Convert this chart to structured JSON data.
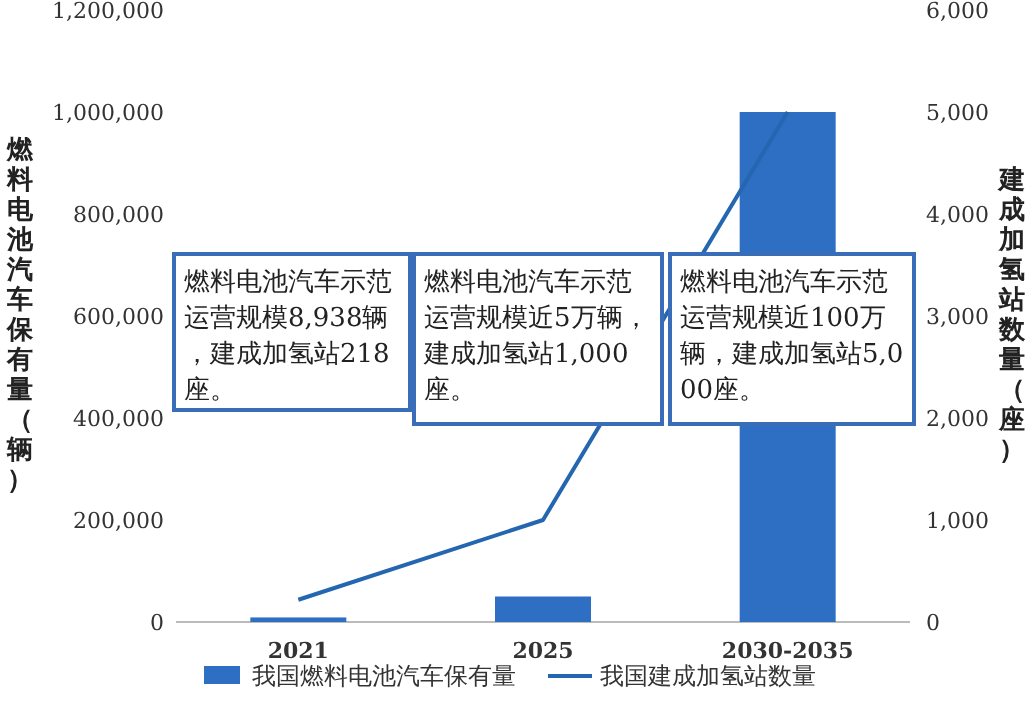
{
  "chart_data": {
    "type": "bar",
    "categories": [
      "2021",
      "2025",
      "2030-2035"
    ],
    "series": [
      {
        "name": "我国燃料电池汽车保有量",
        "color": "#2e6fc4",
        "values": [
          8938,
          50000,
          1000000
        ]
      },
      {
        "name": "我国建成加氢站数量",
        "type": "line",
        "axis": "y2",
        "color": "#2466b0",
        "values": [
          218,
          1000,
          5000
        ]
      }
    ],
    "ylabel": "燃料电池汽车保有量（辆）",
    "y2label": "建成加氢站数量（座）",
    "ylim": [
      0,
      1200000
    ],
    "yticks": [
      {
        "value": 0,
        "label": "0"
      },
      {
        "value": 200000,
        "label": "200,000"
      },
      {
        "value": 400000,
        "label": "400,000"
      },
      {
        "value": 600000,
        "label": "600,000"
      },
      {
        "value": 800000,
        "label": "800,000"
      },
      {
        "value": 1000000,
        "label": "1,000,000"
      },
      {
        "value": 1200000,
        "label": "1,200,000"
      }
    ],
    "y2lim": [
      0,
      6000
    ],
    "y2ticks": [
      {
        "value": 0,
        "label": "0"
      },
      {
        "value": 1000,
        "label": "1,000"
      },
      {
        "value": 2000,
        "label": "2,000"
      },
      {
        "value": 3000,
        "label": "3,000"
      },
      {
        "value": 4000,
        "label": "4,000"
      },
      {
        "value": 5000,
        "label": "5,000"
      },
      {
        "value": 6000,
        "label": "6,000"
      }
    ],
    "annotations": [
      "燃料电池汽车示范运营规模8,938辆，建成加氢站218座。",
      "燃料电池汽车示范运营规模近5万辆，建成加氢站1,000座。",
      "燃料电池汽车示范运营规模近100万辆，建成加氢站5,000座。"
    ],
    "legend": "bottom",
    "grid": false
  }
}
